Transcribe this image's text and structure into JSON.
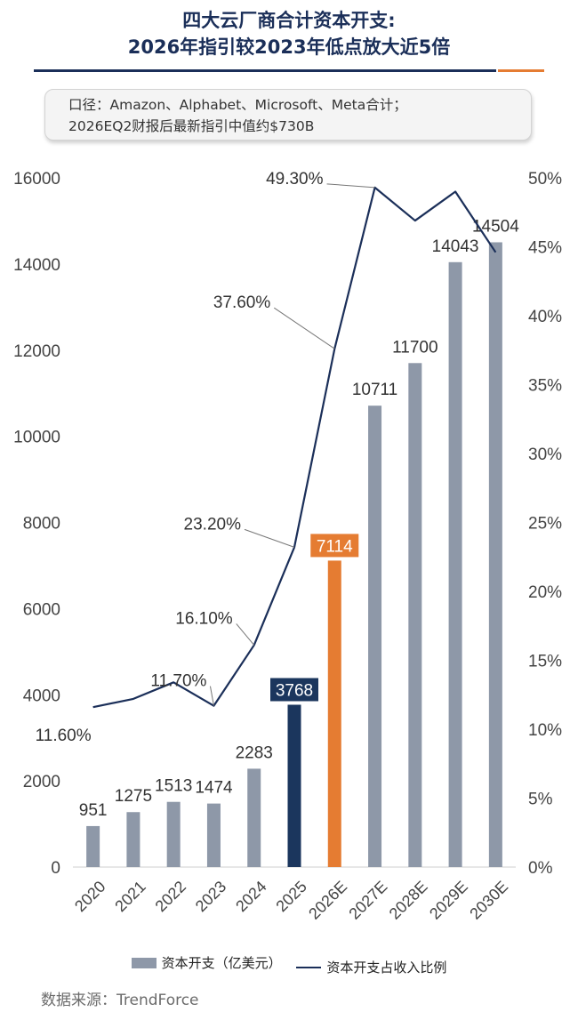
{
  "header": {
    "title_line1": "四大云厂商合计资本开支:",
    "title_line2": "2026年指引较2023年低点放大近5倍"
  },
  "note": {
    "line1": "口径：Amazon、Alphabet、Microsoft、Meta合计；",
    "line2": "2026EQ2财报后最新指引中值约$730B"
  },
  "colors": {
    "title": "#1b2f59",
    "bar_default": "#8e98a8",
    "bar_2025": "#1b365d",
    "bar_2026E": "#e57c32",
    "line": "#1b2f59",
    "accent": "#e57c32"
  },
  "chart_data": {
    "type": "bar+line",
    "categories": [
      "2020",
      "2021",
      "2022",
      "2023",
      "2024",
      "2025",
      "2026E",
      "2027E",
      "2028E",
      "2029E",
      "2030E"
    ],
    "series": [
      {
        "name": "资本开支（亿美元）",
        "type": "bar",
        "axis": "left",
        "values": [
          951,
          1275,
          1513,
          1474,
          2283,
          3768,
          7114,
          10711,
          11700,
          14043,
          14504
        ],
        "labels": [
          "951",
          "1275",
          "1513",
          "1474",
          "2283",
          "3768",
          "7114",
          "10711",
          "11700",
          "14043",
          "14504"
        ]
      },
      {
        "name": "资本开支占收入比例",
        "type": "line",
        "axis": "right",
        "values": [
          11.6,
          12.2,
          13.4,
          11.7,
          16.1,
          23.2,
          37.6,
          49.3,
          46.9,
          49.0,
          44.6
        ],
        "labels": [
          "11.60%",
          "",
          "",
          "11.70%",
          "16.10%",
          "23.20%",
          "37.60%",
          "49.30%",
          "",
          "",
          ""
        ]
      }
    ],
    "left_axis": {
      "ylim": [
        0,
        16000
      ],
      "ticks": [
        "0",
        "2000",
        "4000",
        "6000",
        "8000",
        "10000",
        "12000",
        "14000",
        "16000"
      ]
    },
    "right_axis": {
      "ylim": [
        0,
        50
      ],
      "ticks": [
        "0%",
        "5%",
        "10%",
        "15%",
        "20%",
        "25%",
        "30%",
        "35%",
        "40%",
        "45%",
        "50%"
      ]
    },
    "highlighted_bars": {
      "2025": "dark",
      "2026E": "orange"
    },
    "grid": false,
    "legend_placement": "bottom"
  },
  "source": "数据来源：TrendForce"
}
